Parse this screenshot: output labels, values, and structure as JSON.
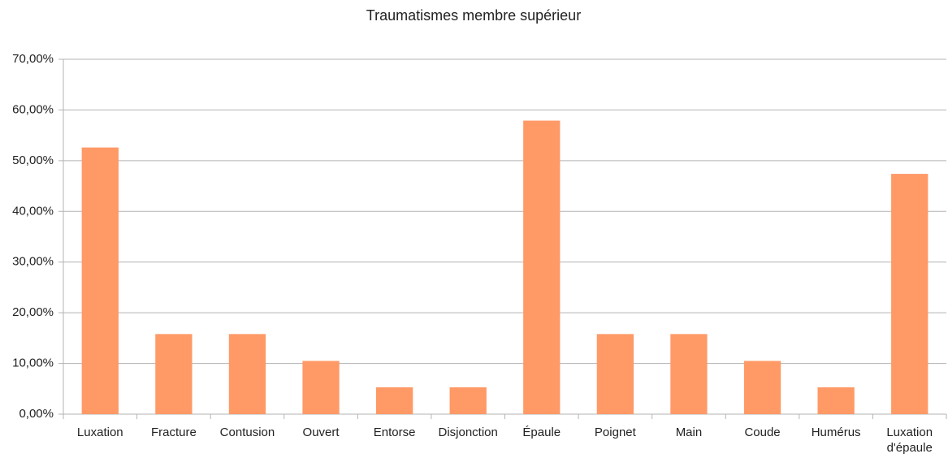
{
  "chart_data": {
    "type": "bar",
    "title": "Traumatismes membre supérieur",
    "categories": [
      "Luxation",
      "Fracture",
      "Contusion",
      "Ouvert",
      "Entorse",
      "Disjonction",
      "Épaule",
      "Poignet",
      "Main",
      "Coude",
      "Humérus",
      "Luxation d'épaule"
    ],
    "values": [
      52.6,
      15.8,
      15.8,
      10.5,
      5.3,
      5.3,
      57.9,
      15.8,
      15.8,
      10.5,
      5.3,
      47.4
    ],
    "color": "#ff9966",
    "ylim": [
      0,
      70
    ],
    "yticks": [
      {
        "value": 0,
        "label": "0,00%"
      },
      {
        "value": 10,
        "label": "10,00%"
      },
      {
        "value": 20,
        "label": "20,00%"
      },
      {
        "value": 30,
        "label": "30,00%"
      },
      {
        "value": 40,
        "label": "40,00%"
      },
      {
        "value": 50,
        "label": "50,00%"
      },
      {
        "value": 60,
        "label": "60,00%"
      },
      {
        "value": 70,
        "label": "70,00%"
      }
    ],
    "grid": true
  }
}
